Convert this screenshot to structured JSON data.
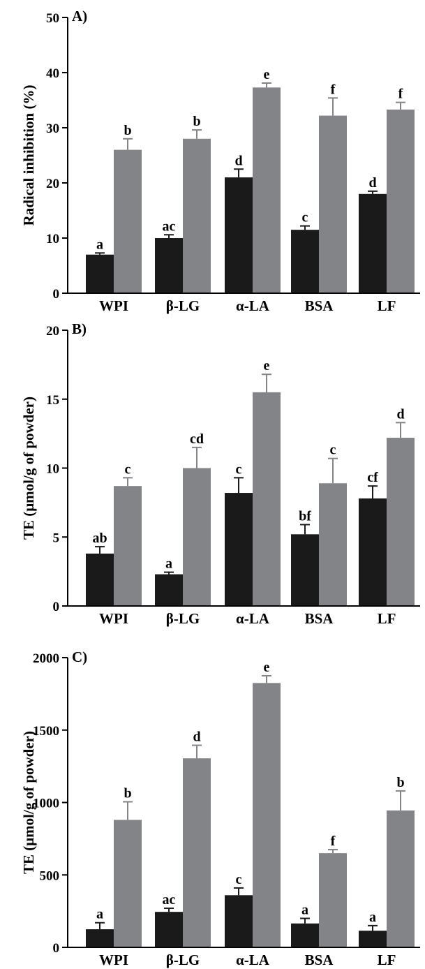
{
  "colors": {
    "series_dark": "#1a1a1a",
    "series_gray": "#838487"
  },
  "chart_data": [
    {
      "type": "bar",
      "panel_label": "A)",
      "ylabel": "Radical inhibition (%)",
      "categories": [
        "WPI",
        "β-LG",
        "α-LA",
        "BSA",
        "LF"
      ],
      "ylim": [
        0,
        50
      ],
      "yticks": [
        0,
        10,
        20,
        30,
        40,
        50
      ],
      "series": [
        {
          "color": "#1a1a1a",
          "values": [
            7,
            10,
            21,
            11.5,
            18
          ],
          "errors": [
            0.3,
            0.6,
            1.5,
            0.7,
            0.5
          ],
          "letters": [
            "a",
            "ac",
            "d",
            "c",
            "d"
          ]
        },
        {
          "color": "#838487",
          "values": [
            26,
            28,
            37.3,
            32.2,
            33.3
          ],
          "errors": [
            2.0,
            1.6,
            0.8,
            3.2,
            1.3
          ],
          "letters": [
            "b",
            "b",
            "e",
            "f",
            "f"
          ]
        }
      ]
    },
    {
      "type": "bar",
      "panel_label": "B)",
      "ylabel": "TE (μmol/g of powder)",
      "categories": [
        "WPI",
        "β-LG",
        "α-LA",
        "BSA",
        "LF"
      ],
      "ylim": [
        0,
        20
      ],
      "yticks": [
        0,
        5,
        10,
        15,
        20
      ],
      "series": [
        {
          "color": "#1a1a1a",
          "values": [
            3.8,
            2.3,
            8.2,
            5.2,
            7.8
          ],
          "errors": [
            0.5,
            0.15,
            1.1,
            0.7,
            0.9
          ],
          "letters": [
            "ab",
            "a",
            "c",
            "bf",
            "cf"
          ]
        },
        {
          "color": "#838487",
          "values": [
            8.7,
            10.0,
            15.5,
            8.9,
            12.2
          ],
          "errors": [
            0.6,
            1.5,
            1.3,
            1.8,
            1.1
          ],
          "letters": [
            "c",
            "cd",
            "e",
            "c",
            "d"
          ]
        }
      ]
    },
    {
      "type": "bar",
      "panel_label": "C)",
      "ylabel": "TE (μmol/g of powder)",
      "categories": [
        "WPI",
        "β-LG",
        "α-LA",
        "BSA",
        "LF"
      ],
      "ylim": [
        0,
        2000
      ],
      "yticks": [
        0,
        500,
        1000,
        1500,
        2000
      ],
      "series": [
        {
          "color": "#1a1a1a",
          "values": [
            125,
            245,
            360,
            165,
            115
          ],
          "errors": [
            45,
            25,
            50,
            35,
            35
          ],
          "letters": [
            "a",
            "ac",
            "c",
            "a",
            "a"
          ]
        },
        {
          "color": "#838487",
          "values": [
            880,
            1305,
            1825,
            650,
            945
          ],
          "errors": [
            125,
            90,
            50,
            25,
            135
          ],
          "letters": [
            "b",
            "d",
            "e",
            "f",
            "b"
          ]
        }
      ]
    }
  ]
}
